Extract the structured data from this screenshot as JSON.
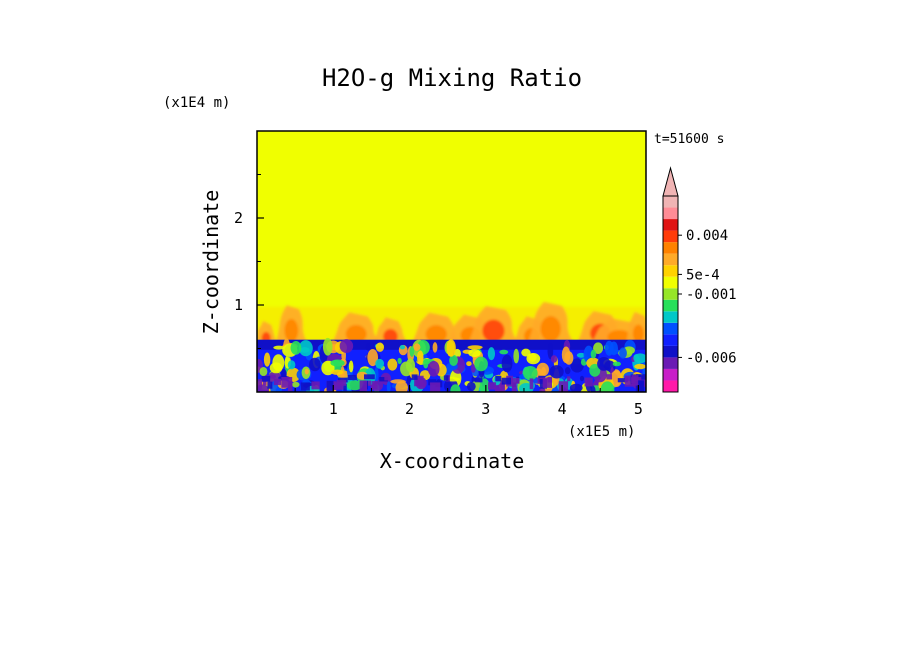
{
  "chart_data": {
    "type": "heatmap",
    "title": "H2O-g Mixing Ratio",
    "xlabel": "X-coordinate",
    "ylabel": "Z-coordinate",
    "x_unit": "(x1E5 m)",
    "y_unit": "(x1E4 m)",
    "time_label": "t=51600 s",
    "xlim": [
      0,
      5.1
    ],
    "ylim": [
      0,
      3.0
    ],
    "x_ticks": [
      "1",
      "2",
      "3",
      "4",
      "5"
    ],
    "y_ticks": [
      "1",
      "2"
    ],
    "colorbar": {
      "colors": [
        "#ff1aa8",
        "#c81ec8",
        "#6a1ab4",
        "#1010c8",
        "#1020ff",
        "#0050ff",
        "#00c8c8",
        "#28e05a",
        "#96e628",
        "#f0ff00",
        "#ffd200",
        "#ffaa28",
        "#ff8200",
        "#ff3c0a",
        "#e01414",
        "#ff8c96",
        "#f0b4b4"
      ],
      "labels": [
        "0.004",
        "5e-4",
        "-0.001",
        "-0.006"
      ],
      "extend_max": true
    },
    "field": {
      "background_value": "5e-4",
      "upper_layer_color": "#f0ff00",
      "boundary_layer_top": 0.6,
      "plume_top": 1.05
    }
  }
}
